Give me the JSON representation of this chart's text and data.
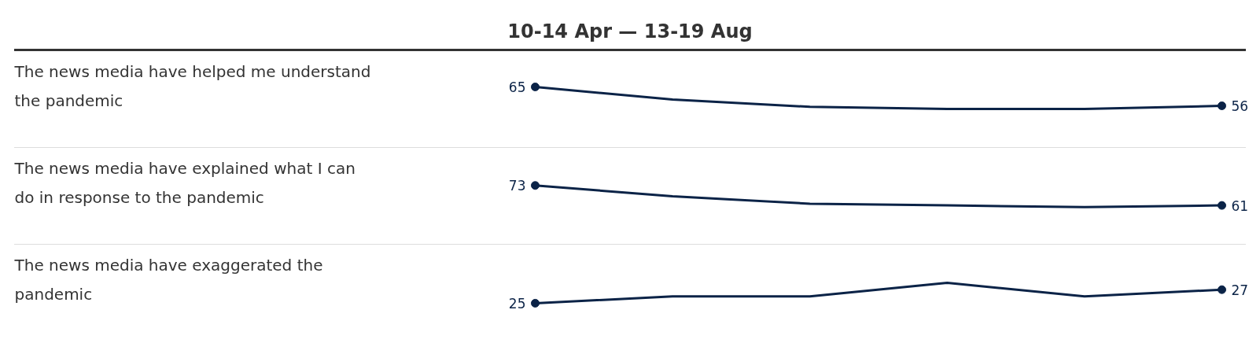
{
  "chart_data": [
    {
      "type": "line",
      "title": "10-14 Apr — 13-19 Aug",
      "ylabel": "The news media have helped me understand the pandemic",
      "categories": [
        null,
        null,
        null,
        null,
        null,
        null
      ],
      "series": [
        {
          "color": "#0b2347",
          "values": [
            65,
            59,
            55.5,
            54.5,
            54.5,
            56
          ],
          "value_labels": [
            "65",
            null,
            null,
            null,
            null,
            "56"
          ]
        }
      ],
      "ylim": [
        38,
        80
      ],
      "tick_labels": false,
      "grid": false,
      "marker": "none",
      "line_style": "solid"
    },
    {
      "type": "line",
      "ylabel": "The news media have explained what I can do in response to the pandemic",
      "categories": [
        null,
        null,
        null,
        null,
        null,
        null
      ],
      "series": [
        {
          "color": "#0b2347",
          "values": [
            73,
            66.5,
            62,
            61,
            60,
            61
          ],
          "value_labels": [
            "73",
            null,
            null,
            null,
            null,
            "61"
          ]
        }
      ],
      "ylim": [
        40,
        93
      ],
      "tick_labels": false,
      "grid": false,
      "marker": "none",
      "line_style": "solid"
    },
    {
      "type": "line",
      "ylabel": "The news media have exaggerated the pandemic",
      "categories": [
        null,
        null,
        null,
        null,
        null,
        null
      ],
      "series": [
        {
          "color": "#0b2347",
          "values": [
            25,
            26,
            26,
            28,
            26,
            27
          ],
          "value_labels": [
            "25",
            null,
            null,
            null,
            null,
            "27"
          ]
        }
      ],
      "ylim": [
        20,
        33
      ],
      "tick_labels": false,
      "grid": false,
      "marker": "none",
      "line_style": "solid"
    }
  ]
}
